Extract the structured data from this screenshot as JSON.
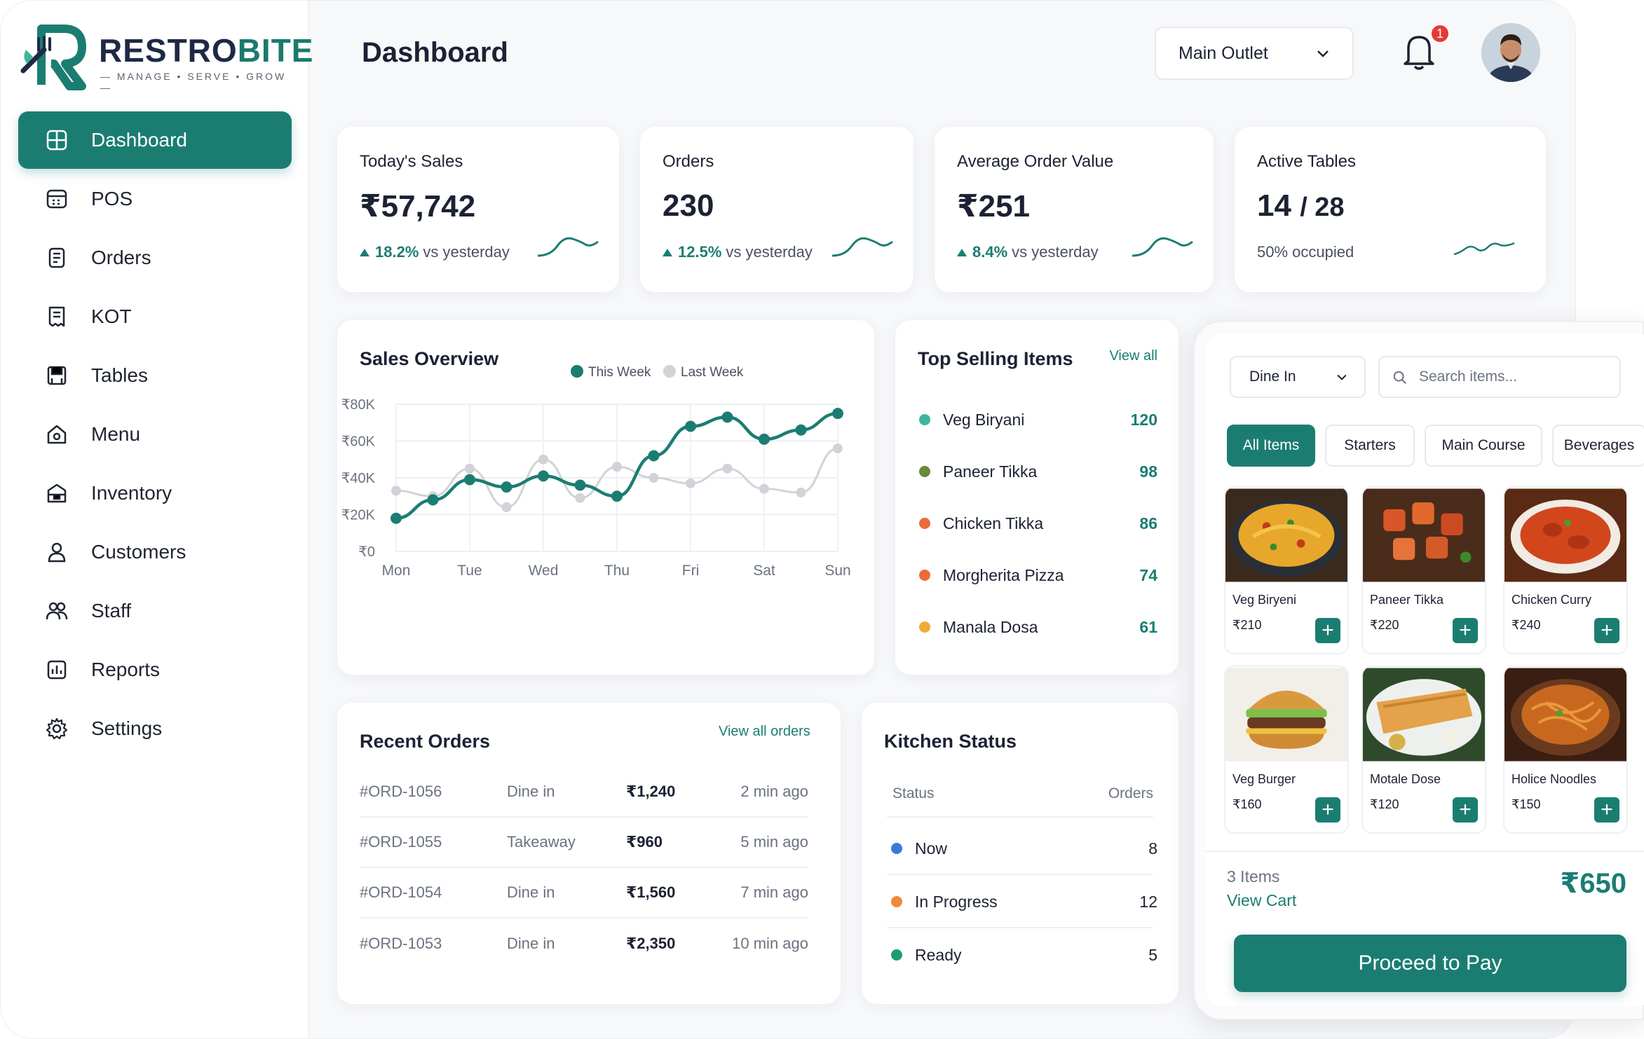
{
  "brand": {
    "name_part1": "RESTRO",
    "name_part2": "BITE",
    "tagline": "— MANAGE • SERVE • GROW —"
  },
  "sidebar": {
    "items": [
      {
        "label": "Dashboard",
        "icon": "dashboard-icon",
        "active": true
      },
      {
        "label": "POS",
        "icon": "pos-icon"
      },
      {
        "label": "Orders",
        "icon": "orders-icon"
      },
      {
        "label": "KOT",
        "icon": "kot-icon"
      },
      {
        "label": "Tables",
        "icon": "tables-icon"
      },
      {
        "label": "Menu",
        "icon": "menu-icon"
      },
      {
        "label": "Inventory",
        "icon": "inventory-icon"
      },
      {
        "label": "Customers",
        "icon": "customers-icon"
      },
      {
        "label": "Staff",
        "icon": "staff-icon"
      },
      {
        "label": "Reports",
        "icon": "reports-icon"
      },
      {
        "label": "Settings",
        "icon": "settings-icon"
      }
    ]
  },
  "header": {
    "title": "Dashboard",
    "outlet": "Main Outlet",
    "notifications": "1"
  },
  "stats": [
    {
      "label": "Today's Sales",
      "value": "₹57,742",
      "change": "18.2%",
      "change_text": "vs yesterday"
    },
    {
      "label": "Orders",
      "value": "230",
      "change": "12.5%",
      "change_text": "vs yesterday"
    },
    {
      "label": "Average Order Value",
      "value": "₹251",
      "change": "8.4%",
      "change_text": "vs yesterday"
    },
    {
      "label": "Active Tables",
      "value": "14",
      "value_suffix": "/ 28",
      "change": "",
      "change_text": "50% occupied"
    }
  ],
  "sales_overview": {
    "title": "Sales Overview",
    "legend": [
      "This Week",
      "Last Week"
    ]
  },
  "chart_data": {
    "type": "line",
    "categories": [
      "Mon",
      "Tue",
      "Wed",
      "Thu",
      "Fri",
      "Sat",
      "Sun"
    ],
    "y_ticks": [
      "₹80K",
      "₹60K",
      "₹40K",
      "₹20K",
      "₹0"
    ],
    "ylim": [
      0,
      80
    ],
    "series": [
      {
        "name": "This Week",
        "color": "#1b7d72",
        "x": [
          0,
          0.5,
          1,
          1.5,
          2,
          2.5,
          3,
          3.5,
          4,
          4.5,
          5,
          5.5,
          6
        ],
        "values": [
          18,
          28,
          39,
          35,
          41,
          36,
          30,
          52,
          68,
          73,
          61,
          66,
          75
        ]
      },
      {
        "name": "Last Week",
        "color": "#d0d3d8",
        "x": [
          0,
          0.5,
          1,
          1.5,
          2,
          2.5,
          3,
          3.5,
          4,
          4.5,
          5,
          5.5,
          6
        ],
        "values": [
          33,
          30,
          45,
          24,
          50,
          29,
          46,
          40,
          37,
          45,
          34,
          32,
          56
        ]
      }
    ],
    "grid": true,
    "legend_position": "top-right"
  },
  "top_selling": {
    "title": "Top Selling Items",
    "view_all": "View all",
    "items": [
      {
        "name": "Veg Biryani",
        "count": "120",
        "color": "#3fb59a"
      },
      {
        "name": "Paneer Tikka",
        "count": "98",
        "color": "#6a8a3a"
      },
      {
        "name": "Chicken Tikka",
        "count": "86",
        "color": "#ec6b3a"
      },
      {
        "name": "Morgherita Pizza",
        "count": "74",
        "color": "#ec6b3a"
      },
      {
        "name": "Manala Dosa",
        "count": "61",
        "color": "#f2a93b"
      }
    ]
  },
  "recent_orders": {
    "title": "Recent Orders",
    "view_all": "View all orders",
    "rows": [
      {
        "id": "#ORD-1056",
        "type": "Dine in",
        "amount": "₹1,240",
        "time": "2 min ago"
      },
      {
        "id": "#ORD-1055",
        "type": "Takeaway",
        "amount": "₹960",
        "time": "5 min ago"
      },
      {
        "id": "#ORD-1054",
        "type": "Dine in",
        "amount": "₹1,560",
        "time": "7 min ago"
      },
      {
        "id": "#ORD-1053",
        "type": "Dine in",
        "amount": "₹2,350",
        "time": "10 min ago"
      }
    ]
  },
  "kitchen_status": {
    "title": "Kitchen Status",
    "col_status": "Status",
    "col_orders": "Orders",
    "rows": [
      {
        "label": "Now",
        "count": "8",
        "color": "#3b7bd8"
      },
      {
        "label": "In Progress",
        "count": "12",
        "color": "#f08b3a"
      },
      {
        "label": "Ready",
        "count": "5",
        "color": "#1b9e6e"
      }
    ]
  },
  "pos_panel": {
    "order_type": "Dine In",
    "search_placeholder": "Search items...",
    "tabs": [
      "All Items",
      "Starters",
      "Main Course",
      "Beverages"
    ],
    "items": [
      {
        "name": "Veg Biryeni",
        "price": "₹210",
        "image": "biryani-image"
      },
      {
        "name": "Paneer Tikka",
        "price": "₹220",
        "image": "paneer-tikka-image"
      },
      {
        "name": "Chicken Curry",
        "price": "₹240",
        "image": "chicken-curry-image"
      },
      {
        "name": "Veg Burger",
        "price": "₹160",
        "image": "burger-image"
      },
      {
        "name": "Motale Dose",
        "price": "₹120",
        "image": "dosa-image"
      },
      {
        "name": "Holice Noodles",
        "price": "₹150",
        "image": "noodles-image"
      }
    ],
    "cart_count": "3 Items",
    "view_cart": "View Cart",
    "cart_total": "₹650",
    "pay_label": "Proceed to Pay"
  }
}
